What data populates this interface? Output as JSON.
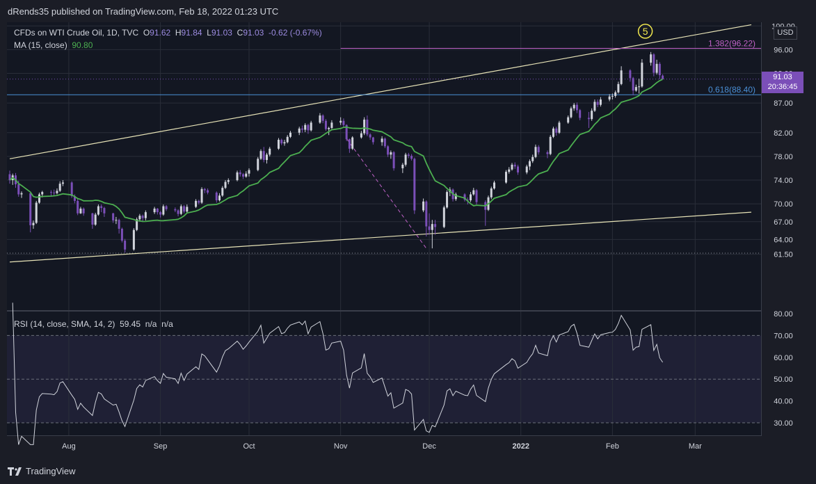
{
  "header": {
    "published": "dRends35 published on TradingView.com, Feb 18, 2022 01:23 UTC"
  },
  "legend": {
    "symbol": "CFDs on WTI Crude Oil, 1D, TVC",
    "o_label": "O",
    "o_value": "91.62",
    "h_label": "H",
    "h_value": "91.84",
    "l_label": "L",
    "l_value": "91.03",
    "c_label": "C",
    "c_value": "91.03",
    "change": "-0.62 (-0.67%)",
    "ma_label": "MA (15, close)",
    "ma_value": "90.80",
    "rsi_label": "RSI (14, close, SMA, 14, 2)",
    "rsi_value": "59.45",
    "rsi_na1": "n/a",
    "rsi_na2": "n/a"
  },
  "price_axis": {
    "currency": "USD",
    "last_price": "91.03",
    "countdown": "20:36:45"
  },
  "footer": {
    "brand": "TradingView"
  },
  "colors": {
    "background": "#131722",
    "up_candle": "#d1d4dc",
    "down_candle": "#7b4fb8",
    "ma_line": "#4caf50",
    "channel": "#e8e4b8",
    "fib_1382": "#c062c8",
    "fib_0618": "#4a8fd6",
    "rsi_line": "#d1d4dc",
    "rsi_band": "#1f2035",
    "wave_marker": "#f2e94e"
  },
  "chart_data": [
    {
      "type": "candlestick",
      "title": "CFDs on WTI Crude Oil, 1D, TVC",
      "y_ticks": [
        100.0,
        96.0,
        92.0,
        87.0,
        82.0,
        78.0,
        74.0,
        70.0,
        67.0,
        64.0,
        61.5
      ],
      "y_tick_labels": [
        "100.00",
        "96.00",
        "92.00",
        "87.00",
        "82.00",
        "78.00",
        "74.00",
        "70.00",
        "67.00",
        "64.00",
        "61.50"
      ],
      "x_tick_labels": [
        "Aug",
        "Sep",
        "Oct",
        "Nov",
        "Dec",
        "2022",
        "Feb",
        "Mar"
      ],
      "x_ticks": [
        "2021-08-01",
        "2021-09-01",
        "2021-10-01",
        "2021-11-01",
        "2021-12-01",
        "2022-01-01",
        "2022-02-01",
        "2022-03-01"
      ],
      "ohlc": [
        [
          "2021-07-12",
          75.0,
          75.6,
          73.4,
          74.0
        ],
        [
          "2021-07-13",
          74.0,
          75.1,
          73.2,
          74.8
        ],
        [
          "2021-07-14",
          74.8,
          75.2,
          72.7,
          73.3
        ],
        [
          "2021-07-15",
          73.3,
          73.9,
          71.2,
          71.6
        ],
        [
          "2021-07-16",
          71.6,
          72.1,
          71.0,
          71.8
        ],
        [
          "2021-07-19",
          71.8,
          71.9,
          65.2,
          66.4
        ],
        [
          "2021-07-20",
          66.4,
          67.2,
          65.8,
          66.8
        ],
        [
          "2021-07-21",
          66.8,
          70.5,
          66.6,
          70.2
        ],
        [
          "2021-07-22",
          70.2,
          71.9,
          70.0,
          71.6
        ],
        [
          "2021-07-23",
          71.6,
          72.2,
          71.1,
          72.0
        ],
        [
          "2021-07-26",
          72.0,
          72.3,
          71.2,
          71.9
        ],
        [
          "2021-07-27",
          71.9,
          72.4,
          71.3,
          71.8
        ],
        [
          "2021-07-28",
          71.8,
          72.6,
          71.6,
          72.2
        ],
        [
          "2021-07-29",
          72.2,
          73.8,
          72.0,
          73.4
        ],
        [
          "2021-07-30",
          73.4,
          74.0,
          73.0,
          73.6
        ],
        [
          "2021-08-02",
          73.6,
          73.8,
          71.0,
          71.3
        ],
        [
          "2021-08-03",
          71.3,
          71.6,
          70.1,
          70.5
        ],
        [
          "2021-08-04",
          70.5,
          70.8,
          68.1,
          68.4
        ],
        [
          "2021-08-05",
          68.4,
          69.5,
          68.3,
          69.2
        ],
        [
          "2021-08-06",
          69.2,
          69.4,
          68.0,
          68.4
        ],
        [
          "2021-08-09",
          68.4,
          68.5,
          65.8,
          66.5
        ],
        [
          "2021-08-10",
          66.5,
          68.5,
          66.3,
          68.2
        ],
        [
          "2021-08-11",
          68.2,
          69.9,
          68.0,
          69.6
        ],
        [
          "2021-08-12",
          69.6,
          69.9,
          68.6,
          69.3
        ],
        [
          "2021-08-13",
          69.3,
          69.5,
          67.8,
          68.4
        ],
        [
          "2021-08-16",
          68.4,
          68.5,
          66.8,
          67.2
        ],
        [
          "2021-08-17",
          67.2,
          67.8,
          66.6,
          67.3
        ],
        [
          "2021-08-18",
          67.3,
          67.5,
          65.0,
          65.8
        ],
        [
          "2021-08-19",
          65.8,
          66.0,
          63.5,
          63.8
        ],
        [
          "2021-08-20",
          63.8,
          64.1,
          61.8,
          62.3
        ],
        [
          "2021-08-23",
          62.3,
          65.9,
          62.1,
          65.6
        ],
        [
          "2021-08-24",
          65.6,
          67.7,
          65.4,
          67.4
        ],
        [
          "2021-08-25",
          67.4,
          68.3,
          67.0,
          68.0
        ],
        [
          "2021-08-26",
          68.0,
          68.2,
          67.1,
          67.6
        ],
        [
          "2021-08-27",
          67.6,
          68.9,
          67.2,
          68.6
        ],
        [
          "2021-08-30",
          68.6,
          69.5,
          68.3,
          69.2
        ],
        [
          "2021-08-31",
          69.2,
          69.3,
          68.2,
          68.6
        ],
        [
          "2021-09-01",
          68.6,
          68.8,
          67.7,
          68.2
        ],
        [
          "2021-09-02",
          68.2,
          69.9,
          68.0,
          69.6
        ],
        [
          "2021-09-03",
          69.6,
          69.8,
          68.8,
          69.1
        ],
        [
          "2021-09-06",
          69.1,
          69.4,
          68.6,
          68.9
        ],
        [
          "2021-09-07",
          68.9,
          69.1,
          67.9,
          68.3
        ],
        [
          "2021-09-08",
          68.3,
          69.9,
          68.1,
          69.6
        ],
        [
          "2021-09-09",
          69.6,
          69.8,
          68.4,
          68.7
        ],
        [
          "2021-09-10",
          68.7,
          69.9,
          68.5,
          69.5
        ],
        [
          "2021-09-13",
          69.5,
          70.8,
          69.3,
          70.5
        ],
        [
          "2021-09-14",
          70.5,
          70.7,
          69.9,
          70.2
        ],
        [
          "2021-09-15",
          70.2,
          72.8,
          70.0,
          72.5
        ],
        [
          "2021-09-16",
          72.5,
          72.7,
          71.8,
          72.3
        ],
        [
          "2021-09-17",
          72.3,
          72.6,
          71.6,
          71.9
        ],
        [
          "2021-09-20",
          71.9,
          72.1,
          70.2,
          70.6
        ],
        [
          "2021-09-21",
          70.6,
          71.8,
          70.4,
          71.4
        ],
        [
          "2021-09-22",
          71.4,
          73.0,
          71.2,
          72.7
        ],
        [
          "2021-09-23",
          72.7,
          74.0,
          72.5,
          73.7
        ],
        [
          "2021-09-24",
          73.7,
          74.3,
          73.3,
          74.0
        ],
        [
          "2021-09-27",
          74.0,
          75.6,
          73.8,
          75.3
        ],
        [
          "2021-09-28",
          75.3,
          75.7,
          74.6,
          75.0
        ],
        [
          "2021-09-29",
          75.0,
          75.2,
          74.2,
          74.6
        ],
        [
          "2021-09-30",
          74.6,
          75.5,
          74.4,
          75.1
        ],
        [
          "2021-10-01",
          75.1,
          76.0,
          74.6,
          75.7
        ],
        [
          "2021-10-04",
          75.7,
          77.9,
          75.5,
          77.6
        ],
        [
          "2021-10-05",
          77.6,
          79.2,
          77.4,
          78.9
        ],
        [
          "2021-10-06",
          78.9,
          79.6,
          77.0,
          77.4
        ],
        [
          "2021-10-07",
          77.4,
          78.6,
          76.8,
          78.3
        ],
        [
          "2021-10-08",
          78.3,
          79.6,
          78.0,
          79.3
        ],
        [
          "2021-10-11",
          79.3,
          81.1,
          79.1,
          80.8
        ],
        [
          "2021-10-12",
          80.8,
          81.0,
          79.9,
          80.2
        ],
        [
          "2021-10-13",
          80.2,
          80.8,
          79.8,
          80.4
        ],
        [
          "2021-10-14",
          80.4,
          81.6,
          80.2,
          81.3
        ],
        [
          "2021-10-15",
          81.3,
          82.3,
          81.1,
          82.0
        ],
        [
          "2021-10-18",
          82.0,
          83.0,
          81.6,
          82.7
        ],
        [
          "2021-10-19",
          82.7,
          83.2,
          82.0,
          82.5
        ],
        [
          "2021-10-20",
          82.5,
          83.6,
          82.1,
          83.3
        ],
        [
          "2021-10-21",
          83.3,
          83.5,
          81.8,
          82.4
        ],
        [
          "2021-10-22",
          82.4,
          84.0,
          82.2,
          83.7
        ],
        [
          "2021-10-25",
          83.7,
          85.3,
          83.5,
          84.9
        ],
        [
          "2021-10-26",
          84.9,
          85.1,
          83.6,
          84.0
        ],
        [
          "2021-10-27",
          84.0,
          84.3,
          82.3,
          82.6
        ],
        [
          "2021-10-28",
          82.6,
          83.0,
          81.6,
          82.8
        ],
        [
          "2021-10-29",
          82.8,
          84.1,
          82.6,
          83.7
        ],
        [
          "2021-11-01",
          83.7,
          84.6,
          83.3,
          84.0
        ],
        [
          "2021-11-02",
          84.0,
          84.4,
          82.9,
          83.3
        ],
        [
          "2021-11-03",
          83.3,
          83.4,
          80.6,
          80.9
        ],
        [
          "2021-11-04",
          80.9,
          81.0,
          78.6,
          79.3
        ],
        [
          "2021-11-05",
          79.3,
          81.4,
          79.1,
          81.2
        ],
        [
          "2021-11-08",
          81.2,
          82.3,
          81.0,
          81.9
        ],
        [
          "2021-11-09",
          81.9,
          84.6,
          81.6,
          84.2
        ],
        [
          "2021-11-10",
          84.2,
          84.9,
          81.4,
          81.7
        ],
        [
          "2021-11-11",
          81.7,
          81.9,
          80.8,
          81.2
        ],
        [
          "2021-11-12",
          81.2,
          81.3,
          80.0,
          80.4
        ],
        [
          "2021-11-15",
          80.4,
          81.4,
          79.8,
          81.0
        ],
        [
          "2021-11-16",
          81.0,
          81.2,
          79.4,
          79.7
        ],
        [
          "2021-11-17",
          79.7,
          79.9,
          77.9,
          78.3
        ],
        [
          "2021-11-18",
          78.3,
          79.0,
          77.6,
          78.7
        ],
        [
          "2021-11-19",
          78.7,
          78.9,
          75.6,
          76.0
        ],
        [
          "2021-11-22",
          76.0,
          76.9,
          75.2,
          76.6
        ],
        [
          "2021-11-23",
          76.6,
          78.6,
          76.3,
          78.3
        ],
        [
          "2021-11-24",
          78.3,
          78.6,
          77.7,
          78.1
        ],
        [
          "2021-11-25",
          78.1,
          78.4,
          77.3,
          77.6
        ],
        [
          "2021-11-26",
          77.6,
          77.8,
          68.3,
          68.9
        ],
        [
          "2021-11-29",
          68.9,
          70.9,
          68.6,
          70.4
        ],
        [
          "2021-11-30",
          70.4,
          70.6,
          64.5,
          66.2
        ],
        [
          "2021-12-01",
          66.2,
          68.4,
          64.8,
          65.6
        ],
        [
          "2021-12-02",
          65.6,
          67.3,
          62.5,
          66.6
        ],
        [
          "2021-12-03",
          66.6,
          67.3,
          64.8,
          66.1
        ],
        [
          "2021-12-06",
          66.1,
          69.7,
          65.9,
          69.4
        ],
        [
          "2021-12-07",
          69.4,
          72.3,
          69.2,
          72.0
        ],
        [
          "2021-12-08",
          72.0,
          72.8,
          71.3,
          72.4
        ],
        [
          "2021-12-09",
          72.4,
          72.6,
          70.4,
          70.8
        ],
        [
          "2021-12-10",
          70.8,
          71.9,
          70.5,
          71.6
        ],
        [
          "2021-12-13",
          71.6,
          71.8,
          70.4,
          70.7
        ],
        [
          "2021-12-14",
          70.7,
          71.1,
          69.9,
          70.6
        ],
        [
          "2021-12-15",
          70.6,
          72.0,
          70.3,
          71.6
        ],
        [
          "2021-12-16",
          71.6,
          72.7,
          71.4,
          72.3
        ],
        [
          "2021-12-17",
          72.3,
          72.5,
          69.9,
          70.3
        ],
        [
          "2021-12-20",
          70.3,
          70.6,
          66.3,
          69.0
        ],
        [
          "2021-12-21",
          69.0,
          71.4,
          68.8,
          71.1
        ],
        [
          "2021-12-22",
          71.1,
          72.9,
          70.8,
          72.6
        ],
        [
          "2021-12-23",
          72.6,
          73.9,
          72.4,
          73.6
        ],
        [
          "2021-12-27",
          73.6,
          75.7,
          73.4,
          75.4
        ],
        [
          "2021-12-28",
          75.4,
          76.2,
          75.1,
          75.8
        ],
        [
          "2021-12-29",
          75.8,
          76.9,
          75.6,
          76.6
        ],
        [
          "2021-12-30",
          76.6,
          77.0,
          75.9,
          76.3
        ],
        [
          "2021-12-31",
          76.3,
          76.6,
          74.9,
          75.3
        ],
        [
          "2022-01-03",
          75.3,
          76.6,
          75.0,
          76.3
        ],
        [
          "2022-01-04",
          76.3,
          77.5,
          75.7,
          77.2
        ],
        [
          "2022-01-05",
          77.2,
          78.3,
          76.9,
          77.9
        ],
        [
          "2022-01-06",
          77.9,
          80.0,
          77.7,
          79.6
        ],
        [
          "2022-01-07",
          79.6,
          79.9,
          78.3,
          78.7
        ],
        [
          "2022-01-10",
          78.7,
          79.0,
          77.7,
          78.4
        ],
        [
          "2022-01-11",
          78.4,
          81.6,
          78.2,
          81.3
        ],
        [
          "2022-01-12",
          81.3,
          83.0,
          81.1,
          82.7
        ],
        [
          "2022-01-13",
          82.7,
          83.0,
          81.5,
          82.0
        ],
        [
          "2022-01-14",
          82.0,
          84.0,
          81.8,
          83.7
        ],
        [
          "2022-01-17",
          83.7,
          84.9,
          83.5,
          84.6
        ],
        [
          "2022-01-18",
          84.6,
          86.4,
          84.4,
          86.1
        ],
        [
          "2022-01-19",
          86.1,
          87.0,
          85.7,
          86.7
        ],
        [
          "2022-01-20",
          86.7,
          87.1,
          85.3,
          85.8
        ],
        [
          "2022-01-21",
          85.8,
          86.0,
          84.1,
          84.5
        ],
        [
          "2022-01-24",
          84.5,
          85.5,
          82.8,
          84.3
        ],
        [
          "2022-01-25",
          84.3,
          86.1,
          84.0,
          85.7
        ],
        [
          "2022-01-26",
          85.7,
          87.6,
          85.5,
          87.2
        ],
        [
          "2022-01-27",
          87.2,
          87.6,
          86.3,
          86.7
        ],
        [
          "2022-01-28",
          86.7,
          88.0,
          86.4,
          87.6
        ],
        [
          "2022-01-31",
          87.6,
          88.5,
          87.3,
          88.1
        ],
        [
          "2022-02-01",
          88.1,
          88.6,
          87.6,
          88.2
        ],
        [
          "2022-02-02",
          88.2,
          89.1,
          87.9,
          88.8
        ],
        [
          "2022-02-03",
          88.8,
          90.6,
          88.6,
          90.2
        ],
        [
          "2022-02-04",
          90.2,
          93.2,
          90.0,
          92.5
        ],
        [
          "2022-02-07",
          92.5,
          92.7,
          90.6,
          91.2
        ],
        [
          "2022-02-08",
          91.2,
          91.4,
          88.3,
          89.1
        ],
        [
          "2022-02-09",
          89.1,
          90.1,
          88.9,
          89.7
        ],
        [
          "2022-02-10",
          89.7,
          91.1,
          88.6,
          89.8
        ],
        [
          "2022-02-11",
          89.8,
          94.4,
          89.6,
          93.8
        ],
        [
          "2022-02-14",
          93.8,
          95.6,
          93.3,
          95.2
        ],
        [
          "2022-02-15",
          95.2,
          95.4,
          91.5,
          92.1
        ],
        [
          "2022-02-16",
          92.1,
          94.3,
          91.8,
          93.6
        ],
        [
          "2022-02-17",
          93.6,
          93.9,
          91.0,
          91.7
        ],
        [
          "2022-02-18",
          91.62,
          91.84,
          91.03,
          91.03
        ]
      ],
      "ma_label": "MA (15, close)",
      "fib_levels": [
        {
          "label": "1.382(96.22)",
          "value": 96.22
        },
        {
          "label": "0.618(88.40)",
          "value": 88.4
        }
      ],
      "wave_label": "5"
    },
    {
      "type": "line",
      "title": "RSI (14, close, SMA, 14, 2)",
      "y_ticks": [
        80.0,
        70.0,
        60.0,
        50.0,
        40.0,
        30.0
      ],
      "y_tick_labels": [
        "80.00",
        "70.00",
        "60.00",
        "50.00",
        "40.00",
        "30.00"
      ],
      "bands": [
        70,
        50,
        30
      ]
    }
  ]
}
